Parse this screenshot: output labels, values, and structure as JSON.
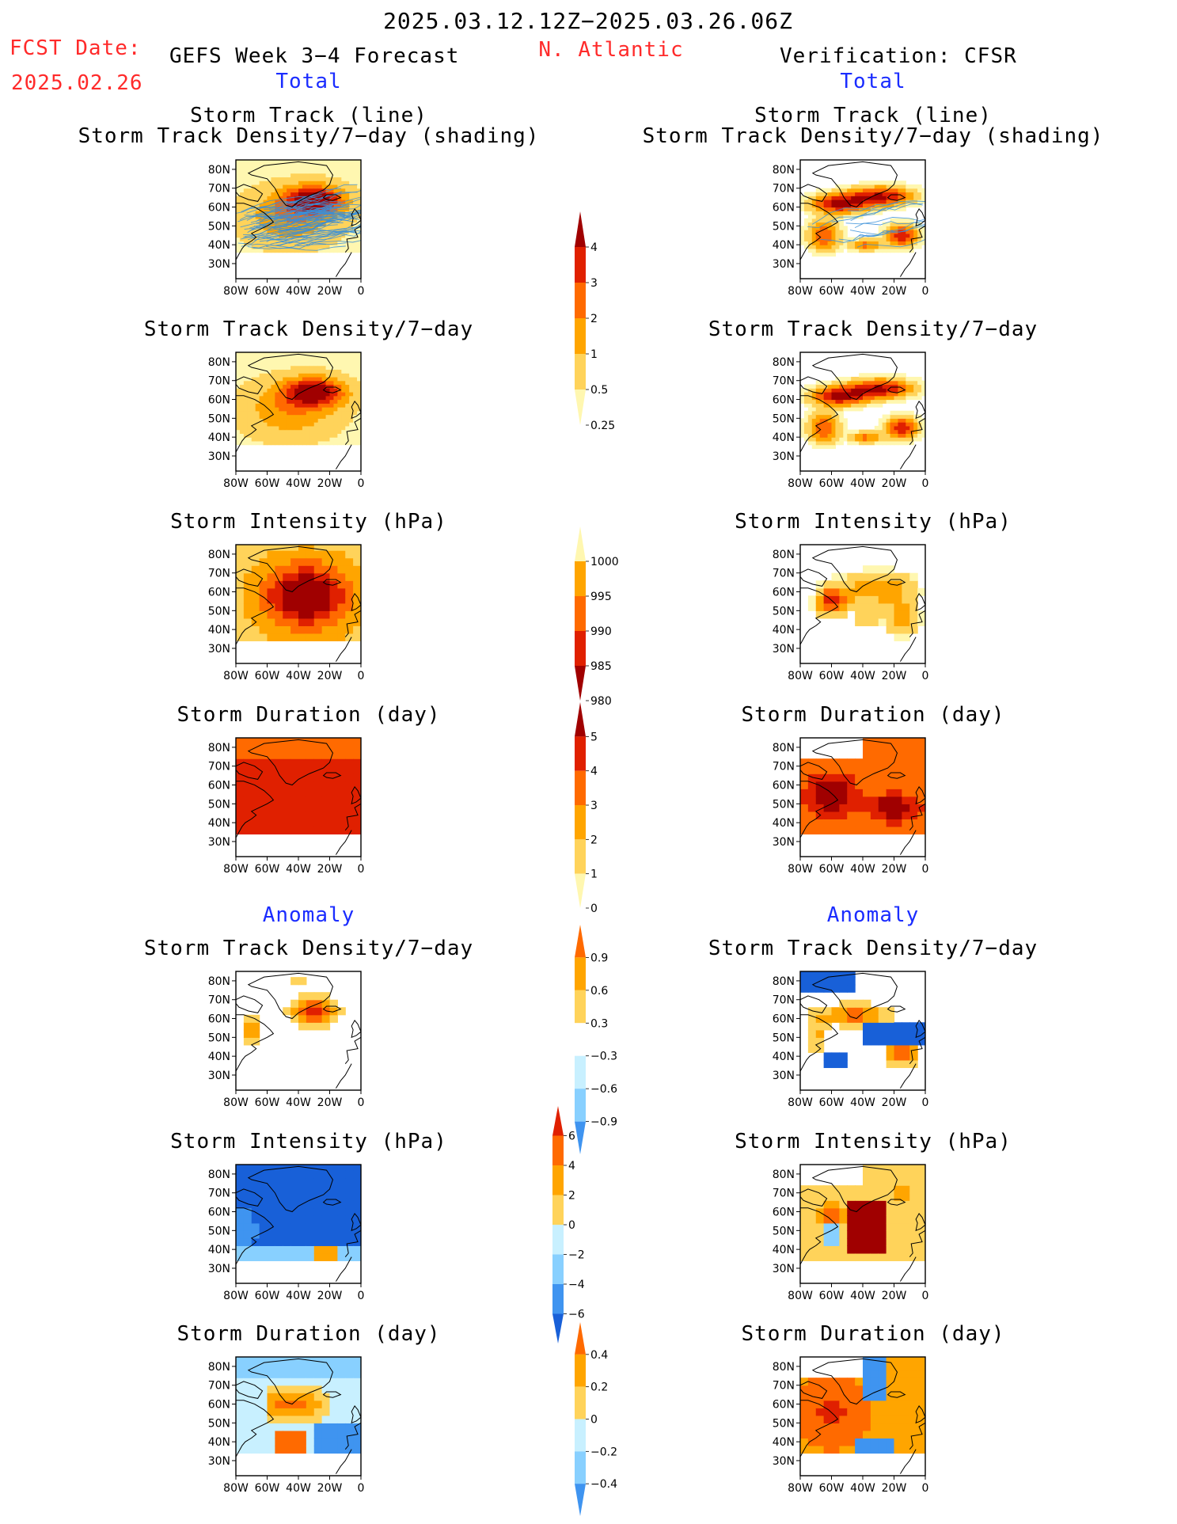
{
  "header": {
    "period": "2025.03.12.12Z−2025.03.26.06Z",
    "fcst_label": "FCST Date:",
    "fcst_date": "2025.02.26",
    "left_title": "GEFS Week 3−4 Forecast",
    "region": "N. Atlantic",
    "right_title": "Verification: CFSR",
    "total_label": "Total",
    "anomaly_label": "Anomaly"
  },
  "panel_titles": {
    "track_line": "Storm Track (line)",
    "track_density_shading": "Storm Track Density/7−day (shading)",
    "track_density": "Storm Track Density/7−day",
    "intensity": "Storm Intensity (hPa)",
    "duration": "Storm Duration (day)"
  },
  "axis": {
    "lat_ticks": [
      "80N",
      "70N",
      "60N",
      "50N",
      "40N",
      "30N"
    ],
    "lon_ticks": [
      "80W",
      "60W",
      "40W",
      "20W",
      "0"
    ]
  },
  "colors": {
    "title_red": "#ff2a2a",
    "title_blue": "#1a2cff",
    "track_line": "#3a8fd8",
    "warm": [
      "#fff7b0",
      "#ffd35a",
      "#ffa500",
      "#ff6a00",
      "#e02000",
      "#a00000"
    ],
    "cool": [
      "#c8f0ff",
      "#88d0ff",
      "#3f94f0",
      "#1860d8"
    ]
  },
  "chart_data": [
    {
      "id": "gefs_total_track",
      "type": "heatmap",
      "title": "Storm Track (line) / Storm Track Density/7−day (shading)",
      "source": "GEFS",
      "lon_range": [
        -80,
        0
      ],
      "lat_range": [
        22,
        85
      ],
      "scale": "density"
    },
    {
      "id": "cfsr_total_track",
      "type": "heatmap",
      "title": "Storm Track (line) / Storm Track Density/7−day (shading)",
      "source": "CFSR",
      "lon_range": [
        -80,
        0
      ],
      "lat_range": [
        22,
        85
      ],
      "scale": "density"
    },
    {
      "id": "gefs_total_density",
      "type": "heatmap",
      "title": "Storm Track Density/7−day",
      "source": "GEFS",
      "scale": "density"
    },
    {
      "id": "cfsr_total_density",
      "type": "heatmap",
      "title": "Storm Track Density/7−day",
      "source": "CFSR",
      "scale": "density"
    },
    {
      "id": "gefs_total_intensity",
      "type": "heatmap",
      "title": "Storm Intensity (hPa)",
      "source": "GEFS",
      "scale": "intensity"
    },
    {
      "id": "cfsr_total_intensity",
      "type": "heatmap",
      "title": "Storm Intensity (hPa)",
      "source": "CFSR",
      "scale": "intensity"
    },
    {
      "id": "gefs_total_duration",
      "type": "heatmap",
      "title": "Storm Duration (day)",
      "source": "GEFS",
      "scale": "duration"
    },
    {
      "id": "cfsr_total_duration",
      "type": "heatmap",
      "title": "Storm Duration (day)",
      "source": "CFSR",
      "scale": "duration"
    },
    {
      "id": "gefs_anom_density",
      "type": "heatmap",
      "title": "Storm Track Density/7−day",
      "source": "GEFS",
      "scale": "density_anomaly"
    },
    {
      "id": "cfsr_anom_density",
      "type": "heatmap",
      "title": "Storm Track Density/7−day",
      "source": "CFSR",
      "scale": "density_anomaly"
    },
    {
      "id": "gefs_anom_intensity",
      "type": "heatmap",
      "title": "Storm Intensity (hPa)",
      "source": "GEFS",
      "scale": "intensity_anomaly"
    },
    {
      "id": "cfsr_anom_intensity",
      "type": "heatmap",
      "title": "Storm Intensity (hPa)",
      "source": "CFSR",
      "scale": "intensity_anomaly"
    },
    {
      "id": "gefs_anom_duration",
      "type": "heatmap",
      "title": "Storm Duration (day)",
      "source": "GEFS",
      "scale": "duration_anomaly"
    },
    {
      "id": "cfsr_anom_duration",
      "type": "heatmap",
      "title": "Storm Duration (day)",
      "source": "CFSR",
      "scale": "duration_anomaly"
    }
  ],
  "colorbars": {
    "density": {
      "labels": [
        "4",
        "3",
        "2",
        "1",
        "0.5",
        "0.25"
      ],
      "colors": [
        "#a00000",
        "#e02000",
        "#ff6a00",
        "#ffa500",
        "#ffd35a",
        "#fff7b0"
      ]
    },
    "intensity": {
      "labels": [
        "1000",
        "995",
        "990",
        "985",
        "980"
      ],
      "colors": [
        "#fff7b0",
        "#ffa500",
        "#ff6a00",
        "#e02000",
        "#a00000"
      ]
    },
    "duration": {
      "labels": [
        "5",
        "4",
        "3",
        "2",
        "1",
        "0"
      ],
      "colors": [
        "#a00000",
        "#e02000",
        "#ff6a00",
        "#ffa500",
        "#ffd35a",
        "#fff7b0"
      ]
    },
    "density_anomaly": {
      "labels": [
        "0.9",
        "0.6",
        "0.3",
        "−0.3",
        "−0.6",
        "−0.9"
      ],
      "colors": [
        "#ff6a00",
        "#ffa500",
        "#ffd35a",
        "#ffffff",
        "#c8f0ff",
        "#88d0ff",
        "#3f94f0"
      ]
    },
    "intensity_anomaly": {
      "labels": [
        "6",
        "4",
        "2",
        "0",
        "−2",
        "−4",
        "−6"
      ],
      "colors": [
        "#e02000",
        "#ff6a00",
        "#ffa500",
        "#ffd35a",
        "#c8f0ff",
        "#88d0ff",
        "#3f94f0",
        "#1860d8"
      ]
    },
    "duration_anomaly": {
      "labels": [
        "0.4",
        "0.2",
        "0",
        "−0.2",
        "−0.4"
      ],
      "colors": [
        "#ff6a00",
        "#ffa500",
        "#ffd35a",
        "#c8f0ff",
        "#88d0ff",
        "#3f94f0"
      ]
    }
  }
}
